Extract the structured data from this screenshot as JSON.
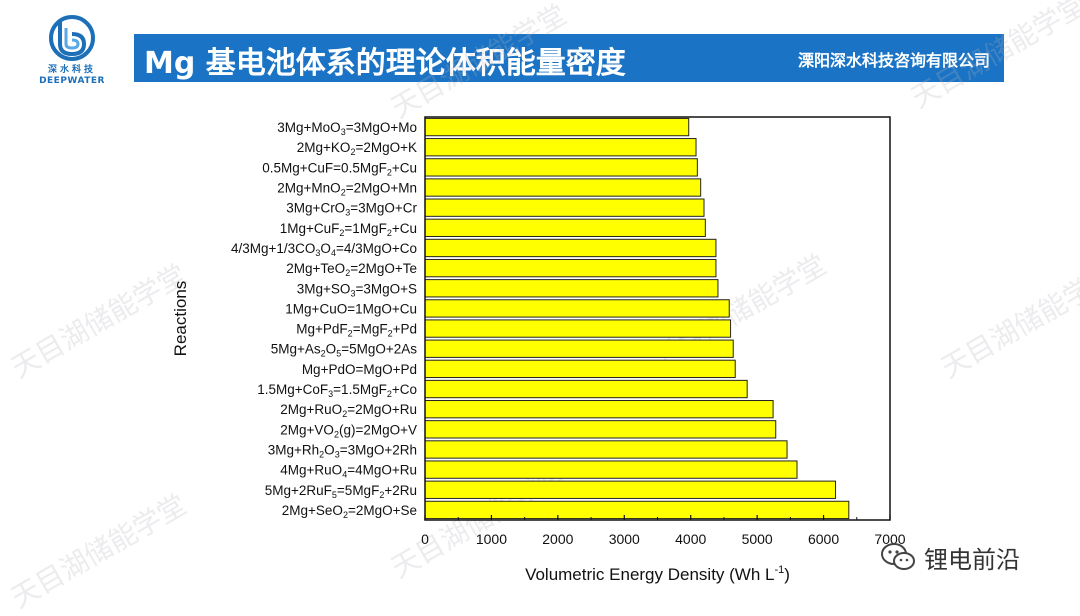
{
  "header": {
    "logo_text_cn": "深水科技",
    "logo_text_en": "DEEPWATER",
    "title": "Mg 基电池体系的理论体积能量密度",
    "company": "溧阳深水科技咨询有限公司"
  },
  "watermark": {
    "text": "天目湖储能学堂"
  },
  "footer": {
    "wechat_label": "锂电前沿"
  },
  "colors": {
    "bar_fill": "#ffff00",
    "bar_stroke": "#222222",
    "title_bar": "#1a73c4"
  },
  "chart_data": {
    "type": "bar",
    "orientation": "horizontal",
    "xlabel": "Volumetric Energy Density (Wh L",
    "xlabel_sup": "-1",
    "xlabel_tail": ")",
    "ylabel": "Reactions",
    "xlim": [
      0,
      7000
    ],
    "xticks": [
      "0",
      "1000",
      "2000",
      "3000",
      "4000",
      "5000",
      "6000",
      "7000"
    ],
    "grid": false,
    "categories": [
      [
        [
          "3Mg+MoO",
          ""
        ],
        [
          "3",
          "sub"
        ],
        [
          "=3MgO+Mo",
          ""
        ]
      ],
      [
        [
          "2Mg+KO",
          ""
        ],
        [
          "2",
          "sub"
        ],
        [
          "=2MgO+K",
          ""
        ]
      ],
      [
        [
          "0.5Mg+CuF=0.5MgF",
          ""
        ],
        [
          "2",
          "sub"
        ],
        [
          "+Cu",
          ""
        ]
      ],
      [
        [
          "2Mg+MnO",
          ""
        ],
        [
          "2",
          "sub"
        ],
        [
          "=2MgO+Mn",
          ""
        ]
      ],
      [
        [
          "3Mg+CrO",
          ""
        ],
        [
          "3",
          "sub"
        ],
        [
          "=3MgO+Cr",
          ""
        ]
      ],
      [
        [
          "1Mg+CuF",
          ""
        ],
        [
          "2",
          "sub"
        ],
        [
          "=1MgF",
          ""
        ],
        [
          "2",
          "sub"
        ],
        [
          "+Cu",
          ""
        ]
      ],
      [
        [
          "4/3Mg+1/3CO",
          ""
        ],
        [
          "3",
          "sub"
        ],
        [
          "O",
          ""
        ],
        [
          "4",
          "sub"
        ],
        [
          "=4/3MgO+Co",
          ""
        ]
      ],
      [
        [
          "2Mg+TeO",
          ""
        ],
        [
          "2",
          "sub"
        ],
        [
          "=2MgO+Te",
          ""
        ]
      ],
      [
        [
          "3Mg+SO",
          ""
        ],
        [
          "3",
          "sub"
        ],
        [
          "=3MgO+S",
          ""
        ]
      ],
      [
        [
          "1Mg+CuO=1MgO+Cu",
          ""
        ]
      ],
      [
        [
          "Mg+PdF",
          ""
        ],
        [
          "2",
          "sub"
        ],
        [
          "=MgF",
          ""
        ],
        [
          "2",
          "sub"
        ],
        [
          "+Pd",
          ""
        ]
      ],
      [
        [
          "5Mg+As",
          ""
        ],
        [
          "2",
          "sub"
        ],
        [
          "O",
          ""
        ],
        [
          "5",
          "sub"
        ],
        [
          "=5MgO+2As",
          ""
        ]
      ],
      [
        [
          "Mg+PdO=MgO+Pd",
          ""
        ]
      ],
      [
        [
          "1.5Mg+CoF",
          ""
        ],
        [
          "3",
          "sub"
        ],
        [
          "=1.5MgF",
          ""
        ],
        [
          "2",
          "sub"
        ],
        [
          "+Co",
          ""
        ]
      ],
      [
        [
          "2Mg+RuO",
          ""
        ],
        [
          "2",
          "sub"
        ],
        [
          "=2MgO+Ru",
          ""
        ]
      ],
      [
        [
          "2Mg+VO",
          ""
        ],
        [
          "2",
          "sub"
        ],
        [
          "(g)=2MgO+V",
          ""
        ]
      ],
      [
        [
          "3Mg+Rh",
          ""
        ],
        [
          "2",
          "sub"
        ],
        [
          "O",
          ""
        ],
        [
          "3",
          "sub"
        ],
        [
          "=3MgO+2Rh",
          ""
        ]
      ],
      [
        [
          "4Mg+RuO",
          ""
        ],
        [
          "4",
          "sub"
        ],
        [
          "=4MgO+Ru",
          ""
        ]
      ],
      [
        [
          "5Mg+2RuF",
          ""
        ],
        [
          "5",
          "sub"
        ],
        [
          "=5MgF",
          ""
        ],
        [
          "2",
          "sub"
        ],
        [
          "+2Ru",
          ""
        ]
      ],
      [
        [
          "2Mg+SeO",
          ""
        ],
        [
          "2",
          "sub"
        ],
        [
          "=2MgO+Se",
          ""
        ]
      ]
    ],
    "values": [
      3970,
      4080,
      4100,
      4150,
      4200,
      4220,
      4380,
      4380,
      4410,
      4580,
      4600,
      4640,
      4670,
      4850,
      5240,
      5280,
      5450,
      5600,
      6180,
      6380
    ]
  }
}
